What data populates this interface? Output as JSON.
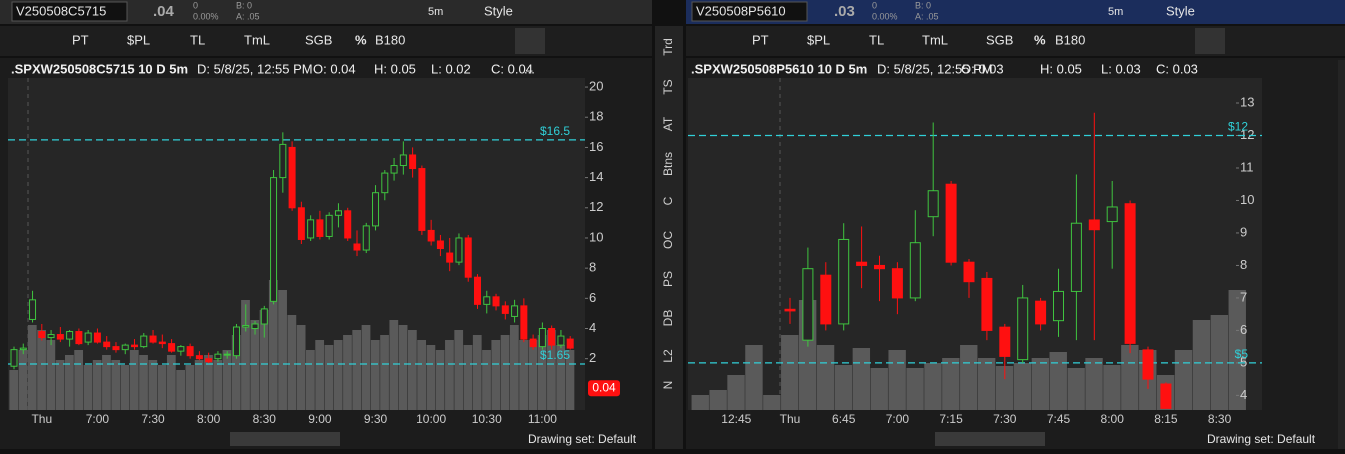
{
  "left_panel": {
    "symbol": "V250508C5715",
    "last": ".04",
    "change": "0",
    "change_pct": "0.00%",
    "bid": "B: 0",
    "ask": "A: .05",
    "interval": "5m",
    "style": "Style"
  },
  "right_panel": {
    "symbol": "V250508P5610",
    "last": ".03",
    "change": "0",
    "change_pct": "0.00%",
    "bid": "B: 0",
    "ask": "A: .05",
    "interval": "5m",
    "style": "Style"
  },
  "toolbar": [
    "PT",
    "$PL",
    "TL",
    "TmL",
    "SGB",
    "%",
    "B180"
  ],
  "side_tabs": [
    "Trd",
    "TS",
    "AT",
    "Btns",
    "C",
    "OC",
    "PS",
    "DB",
    "L2",
    "N"
  ],
  "drawing_set": "Drawing set: Default",
  "chart_data": [
    {
      "type": "candlestick",
      "title": ".SPXW250508C5715 10 D 5m",
      "date": "D: 5/8/25, 12:55 PM",
      "ohlc_labels": [
        "O: 0.04",
        "H: 0.05",
        "L: 0.02",
        "C: 0.04"
      ],
      "more": "...",
      "categories": [
        null,
        null,
        null,
        "Thu",
        null,
        null,
        null,
        null,
        null,
        "7:00",
        null,
        null,
        null,
        null,
        null,
        "7:30",
        null,
        null,
        null,
        null,
        null,
        "8:00",
        null,
        null,
        null,
        null,
        null,
        "8:30",
        null,
        null,
        null,
        null,
        null,
        "9:00",
        null,
        null,
        null,
        null,
        null,
        "9:30",
        null,
        null,
        null,
        null,
        null,
        "10:00",
        null,
        null,
        null,
        null,
        null,
        "10:30",
        null,
        null,
        null,
        null,
        null,
        "11:00",
        null,
        null,
        null
      ],
      "open": [
        1.5,
        2.6,
        4.6,
        3.8,
        3.4,
        3.6,
        3.3,
        3.8,
        3.1,
        3.7,
        3.1,
        2.8,
        2.6,
        2.9,
        2.8,
        3.5,
        3.1,
        3.0,
        2.5,
        2.8,
        2.2,
        2.0,
        2.0,
        2.3,
        2.2,
        4.1,
        4.0,
        4.3,
        5.8,
        14.0,
        16.0,
        12.0,
        10.0,
        11.2,
        10.1,
        11.5,
        11.8,
        9.6,
        9.2,
        10.8,
        13.0,
        14.3,
        14.8,
        15.5,
        14.6,
        10.5,
        9.8,
        9.0,
        8.4,
        10.0,
        7.4,
        5.6,
        6.1,
        5.5,
        4.8,
        5.5,
        3.3,
        2.8,
        4.0,
        2.9,
        3.3
      ],
      "high": [
        2.8,
        3.0,
        6.5,
        4.3,
        3.9,
        4.1,
        3.9,
        4.0,
        3.9,
        4.0,
        3.5,
        3.1,
        3.0,
        3.3,
        3.7,
        3.9,
        3.6,
        3.3,
        2.9,
        3.0,
        2.5,
        2.4,
        2.5,
        2.5,
        4.3,
        5.6,
        4.5,
        5.5,
        14.5,
        17.0,
        16.4,
        12.4,
        11.5,
        11.8,
        11.7,
        12.3,
        12.0,
        10.5,
        11.0,
        13.5,
        14.5,
        15.3,
        16.4,
        16.0,
        14.8,
        11.2,
        10.2,
        10.0,
        10.3,
        10.2,
        7.6,
        6.5,
        6.3,
        5.8,
        5.9,
        6.0,
        3.6,
        4.4,
        4.2,
        3.9,
        3.5
      ],
      "low": [
        1.3,
        2.3,
        4.4,
        3.2,
        2.9,
        3.1,
        2.8,
        2.9,
        2.9,
        3.0,
        2.6,
        2.4,
        2.3,
        2.6,
        2.7,
        3.0,
        2.7,
        2.4,
        2.2,
        2.0,
        1.9,
        1.7,
        1.8,
        2.0,
        2.0,
        3.8,
        3.6,
        3.4,
        5.6,
        13.0,
        11.8,
        9.6,
        9.8,
        9.9,
        9.9,
        10.7,
        9.8,
        8.8,
        9.0,
        10.5,
        12.5,
        13.8,
        14.2,
        14.0,
        10.2,
        9.5,
        8.8,
        7.8,
        8.2,
        7.1,
        5.3,
        5.0,
        5.2,
        4.6,
        4.4,
        3.1,
        2.6,
        2.6,
        2.6,
        2.7,
        2.6
      ],
      "close": [
        2.6,
        2.7,
        5.9,
        3.4,
        3.6,
        3.3,
        3.8,
        3.0,
        3.7,
        3.1,
        2.8,
        2.6,
        2.9,
        2.8,
        3.5,
        3.1,
        3.0,
        2.5,
        2.8,
        2.2,
        2.0,
        1.8,
        2.3,
        2.3,
        4.1,
        4.2,
        4.3,
        5.3,
        14.0,
        16.2,
        12.0,
        9.9,
        11.2,
        10.1,
        11.5,
        11.8,
        10.0,
        9.2,
        10.8,
        13.0,
        14.3,
        14.8,
        15.5,
        14.6,
        10.5,
        9.8,
        9.3,
        8.4,
        10.0,
        7.4,
        5.6,
        6.1,
        5.5,
        5.0,
        5.5,
        3.3,
        2.8,
        4.0,
        2.9,
        3.5,
        2.7
      ],
      "volume": [
        40,
        60,
        85,
        80,
        70,
        50,
        55,
        60,
        45,
        50,
        55,
        50,
        45,
        60,
        55,
        50,
        45,
        55,
        40,
        45,
        50,
        55,
        50,
        60,
        75,
        110,
        90,
        100,
        130,
        120,
        95,
        85,
        60,
        70,
        65,
        70,
        75,
        80,
        85,
        70,
        75,
        90,
        85,
        80,
        70,
        65,
        60,
        70,
        80,
        65,
        75,
        60,
        70,
        75,
        85,
        70,
        70,
        75,
        80,
        65,
        60
      ],
      "volume_lim": [
        0,
        332
      ],
      "ylim": [
        -1.4,
        20.6
      ],
      "yticks": [
        2,
        4,
        6,
        8,
        10,
        12,
        14,
        16,
        18,
        20
      ],
      "price_lines": [
        {
          "value": 16.5,
          "label": "$16.5"
        },
        {
          "value": 1.65,
          "label": "$1.65"
        }
      ],
      "last_price": {
        "value": 0.04,
        "label": "0.04"
      },
      "up_color": "#3fc43f",
      "down_color": "#ff1010",
      "volume_color": "#5a5a5a",
      "line_color": "#30d0d8"
    },
    {
      "type": "candlestick",
      "title": ".SPXW250508P5610 10 D 5m",
      "date": "D: 5/8/25, 12:55 PM",
      "ohlc_labels": [
        "O: 0.03",
        "H: 0.05",
        "L: 0.03",
        "C: 0.03"
      ],
      "categories": [
        null,
        null,
        "12:45",
        null,
        null,
        "Thu",
        null,
        null,
        "6:45",
        null,
        null,
        "7:00",
        null,
        null,
        "7:15",
        null,
        null,
        "7:30",
        null,
        null,
        "7:45",
        null,
        null,
        "8:00",
        null,
        null,
        "8:15",
        null,
        null,
        "8:30",
        null
      ],
      "open": [
        null,
        null,
        null,
        null,
        null,
        6.65,
        5.7,
        7.7,
        6.2,
        8.1,
        8.0,
        7.9,
        7.0,
        9.5,
        10.5,
        8.1,
        7.6,
        6.1,
        5.1,
        6.9,
        6.3,
        7.2,
        9.4,
        9.35,
        9.9,
        5.4,
        4.35,
        null,
        null,
        null,
        null
      ],
      "high": [
        null,
        null,
        null,
        null,
        null,
        7.0,
        8.55,
        8.1,
        9.3,
        9.2,
        8.3,
        8.1,
        9.7,
        12.4,
        10.6,
        8.2,
        7.8,
        6.2,
        7.4,
        7.0,
        7.9,
        10.8,
        12.7,
        10.6,
        10.0,
        5.5,
        4.4,
        null,
        null,
        null,
        null
      ],
      "low": [
        null,
        null,
        null,
        null,
        null,
        6.2,
        5.5,
        6.0,
        6.0,
        7.3,
        6.9,
        6.5,
        6.9,
        8.9,
        8.0,
        7.0,
        5.7,
        4.5,
        5.0,
        6.0,
        5.8,
        5.7,
        5.7,
        7.9,
        5.3,
        4.2,
        3.6,
        null,
        null,
        null,
        null
      ],
      "close": [
        null,
        null,
        null,
        null,
        null,
        6.6,
        7.9,
        6.2,
        8.8,
        8.0,
        7.9,
        7.0,
        8.7,
        10.3,
        8.1,
        7.5,
        6.0,
        5.2,
        7.0,
        6.2,
        7.2,
        9.3,
        9.1,
        9.8,
        5.6,
        4.5,
        3.6,
        null,
        null,
        null,
        null
      ],
      "volume": [
        15,
        20,
        35,
        65,
        15,
        75,
        110,
        65,
        45,
        62,
        42,
        60,
        42,
        47,
        52,
        65,
        52,
        44,
        47,
        52,
        58,
        42,
        52,
        45,
        65,
        60,
        35,
        60,
        90,
        95,
        120
      ],
      "volume_lim": [
        0,
        332
      ],
      "ylim": [
        3.55,
        13.77
      ],
      "yticks": [
        4,
        5,
        6,
        7,
        8,
        9,
        10,
        11,
        12,
        13
      ],
      "price_lines": [
        {
          "value": 12,
          "label": "$12"
        },
        {
          "value": 5,
          "label": "$5"
        }
      ],
      "up_color": "#3fc43f",
      "down_color": "#ff1010",
      "volume_color": "#5a5a5a",
      "line_color": "#30d0d8"
    }
  ]
}
